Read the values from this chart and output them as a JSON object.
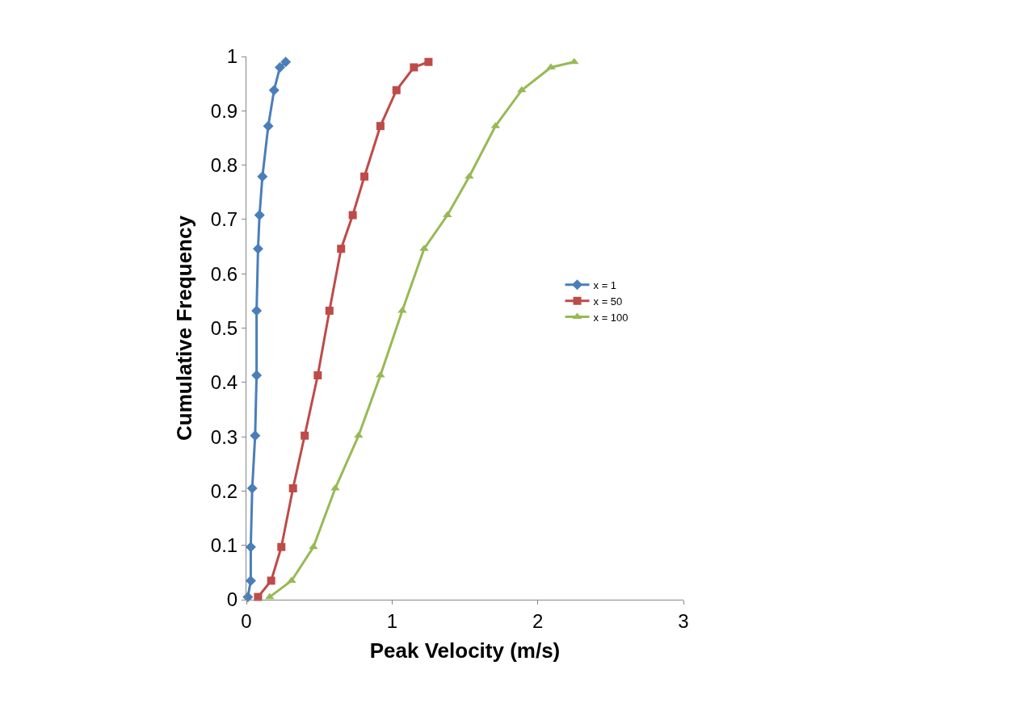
{
  "chart_data": {
    "type": "line",
    "xlabel": "Peak Velocity (m/s)",
    "ylabel": "Cumulative Frequency",
    "series": [
      {
        "name": "x = 1",
        "color": "#4a7ebb",
        "marker": "diamond",
        "x": [
          0.01,
          0.03,
          0.03,
          0.04,
          0.06,
          0.07,
          0.07,
          0.08,
          0.09,
          0.11,
          0.15,
          0.19,
          0.23,
          0.27
        ],
        "values": [
          0.005,
          0.035,
          0.097,
          0.205,
          0.302,
          0.413,
          0.532,
          0.646,
          0.708,
          0.779,
          0.872,
          0.938,
          0.98,
          0.99
        ]
      },
      {
        "name": "x = 50",
        "color": "#be4b48",
        "marker": "square",
        "x": [
          0.08,
          0.17,
          0.24,
          0.32,
          0.4,
          0.49,
          0.57,
          0.65,
          0.73,
          0.81,
          0.92,
          1.03,
          1.15,
          1.25
        ],
        "values": [
          0.005,
          0.035,
          0.097,
          0.205,
          0.302,
          0.413,
          0.532,
          0.646,
          0.708,
          0.779,
          0.872,
          0.938,
          0.98,
          0.99
        ]
      },
      {
        "name": "x = 100",
        "color": "#98b954",
        "marker": "triangle",
        "x": [
          0.16,
          0.31,
          0.46,
          0.61,
          0.77,
          0.92,
          1.07,
          1.22,
          1.38,
          1.53,
          1.71,
          1.89,
          2.09,
          2.25
        ],
        "values": [
          0.005,
          0.035,
          0.097,
          0.205,
          0.302,
          0.413,
          0.532,
          0.646,
          0.708,
          0.779,
          0.872,
          0.938,
          0.98,
          0.99
        ]
      }
    ],
    "xlim": [
      0,
      3
    ],
    "xticks": [
      0,
      1,
      2,
      3
    ],
    "ylim": [
      0,
      1
    ],
    "yticks": [
      0,
      0.1,
      0.2,
      0.3,
      0.4,
      0.5,
      0.6,
      0.7,
      0.8,
      0.9,
      1
    ],
    "legend": "right",
    "line_style": "solid"
  }
}
